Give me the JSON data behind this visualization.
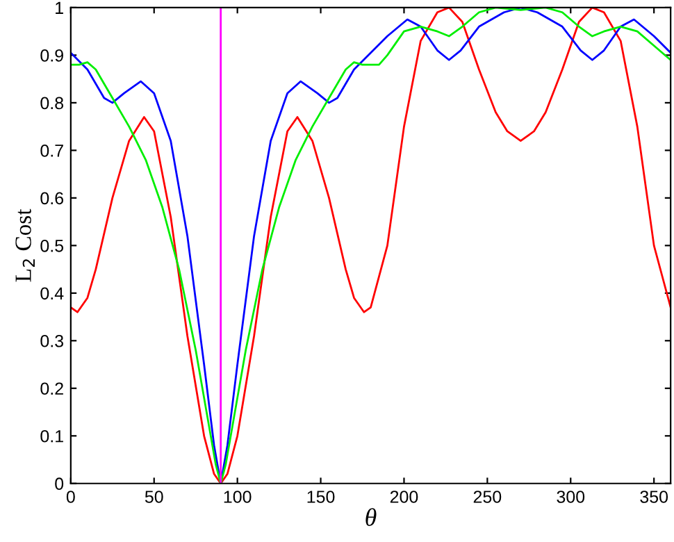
{
  "chart_data": {
    "type": "line",
    "xlabel": "θ",
    "ylabel": "L$_{2}$ Cost",
    "xlim": [
      0,
      360
    ],
    "ylim": [
      0,
      1
    ],
    "xticks": [
      0,
      50,
      100,
      150,
      200,
      250,
      300,
      350
    ],
    "yticks": [
      0,
      0.1,
      0.2,
      0.3,
      0.4,
      0.5,
      0.6,
      0.7,
      0.8,
      0.9,
      1
    ],
    "grid": false,
    "legend": false,
    "marker": "none",
    "line_style": "solid",
    "ref_lines": [
      {
        "axis": "x",
        "value": 90,
        "color": "#ff00ff"
      }
    ],
    "series": [
      {
        "color": "#ff0000",
        "x": [
          0,
          4,
          10,
          15,
          25,
          35,
          44,
          50,
          60,
          70,
          80,
          86,
          90,
          94,
          100,
          110,
          120,
          130,
          136,
          145,
          155,
          165,
          170,
          176,
          180,
          190,
          200,
          210,
          220,
          227,
          235,
          245,
          255,
          262,
          270,
          278,
          285,
          295,
          305,
          313,
          320,
          330,
          340,
          350,
          360
        ],
        "values": [
          0.37,
          0.36,
          0.39,
          0.45,
          0.6,
          0.72,
          0.77,
          0.74,
          0.56,
          0.31,
          0.1,
          0.02,
          0,
          0.02,
          0.1,
          0.31,
          0.56,
          0.74,
          0.77,
          0.72,
          0.6,
          0.45,
          0.39,
          0.36,
          0.37,
          0.5,
          0.75,
          0.93,
          0.99,
          1.0,
          0.97,
          0.87,
          0.78,
          0.74,
          0.72,
          0.74,
          0.78,
          0.87,
          0.97,
          1.0,
          0.99,
          0.93,
          0.75,
          0.5,
          0.37
        ]
      },
      {
        "color": "#0000ff",
        "x": [
          0,
          10,
          20,
          25,
          32,
          42,
          50,
          60,
          70,
          80,
          86,
          90,
          94,
          100,
          110,
          120,
          130,
          138,
          148,
          155,
          160,
          170,
          180,
          190,
          202,
          210,
          220,
          227,
          234,
          245,
          260,
          270,
          280,
          295,
          306,
          313,
          320,
          330,
          338,
          350,
          360
        ],
        "values": [
          0.905,
          0.87,
          0.81,
          0.8,
          0.82,
          0.845,
          0.82,
          0.72,
          0.52,
          0.25,
          0.08,
          0,
          0.08,
          0.25,
          0.52,
          0.72,
          0.82,
          0.845,
          0.82,
          0.8,
          0.81,
          0.87,
          0.905,
          0.94,
          0.975,
          0.96,
          0.91,
          0.89,
          0.91,
          0.96,
          0.99,
          1.0,
          0.99,
          0.96,
          0.91,
          0.89,
          0.91,
          0.96,
          0.975,
          0.94,
          0.905
        ]
      },
      {
        "color": "#00ee00",
        "x": [
          0,
          5,
          10,
          15,
          25,
          35,
          45,
          55,
          65,
          75,
          82,
          87,
          90,
          93,
          98,
          105,
          115,
          125,
          135,
          145,
          155,
          165,
          170,
          175,
          180,
          185,
          190,
          200,
          210,
          220,
          227,
          235,
          245,
          255,
          270,
          285,
          295,
          305,
          313,
          320,
          330,
          340,
          350,
          360
        ],
        "values": [
          0.88,
          0.88,
          0.885,
          0.87,
          0.81,
          0.75,
          0.68,
          0.58,
          0.45,
          0.28,
          0.14,
          0.04,
          0,
          0.04,
          0.14,
          0.28,
          0.45,
          0.58,
          0.68,
          0.75,
          0.81,
          0.87,
          0.885,
          0.88,
          0.88,
          0.88,
          0.9,
          0.95,
          0.96,
          0.95,
          0.94,
          0.96,
          0.99,
          1.0,
          0.995,
          1.0,
          0.99,
          0.96,
          0.94,
          0.95,
          0.96,
          0.95,
          0.92,
          0.89
        ]
      }
    ]
  }
}
